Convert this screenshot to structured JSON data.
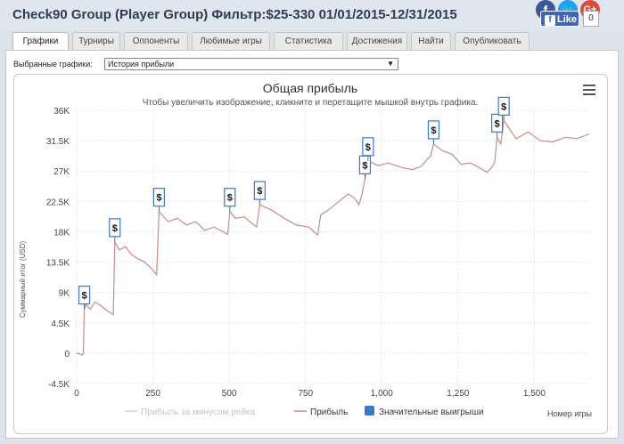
{
  "window": {
    "title": "Check90 Group (Player Group) Фильтр:$25-330 01/01/2015-12/31/2015"
  },
  "social": {
    "facebook_icon": "facebook-icon",
    "twitter_icon": "twitter-icon",
    "gplus_label": "G+",
    "fb_like_label": "Like",
    "gplus_count": "0"
  },
  "tabs": [
    {
      "label": "Графики",
      "active": true
    },
    {
      "label": "Турниры",
      "active": false
    },
    {
      "label": "Оппоненты",
      "active": false
    },
    {
      "label": "Любимые игры",
      "active": false
    },
    {
      "label": "Статистика",
      "active": false
    },
    {
      "label": "Достижения",
      "active": false
    },
    {
      "label": "Найти",
      "active": false
    },
    {
      "label": "Опубликовать",
      "active": false
    }
  ],
  "selector": {
    "label": "Выбранные графики:",
    "value": "История прибыли"
  },
  "menu_icon": "hamburger-menu-icon",
  "colors": {
    "profit_line": "#c98a8a",
    "no_rake_line": "#d0d0d0",
    "big_win_marker": "#3a78c8",
    "grid": "#d9d9d9"
  },
  "chart_data": {
    "type": "line",
    "title": "Общая прибыль",
    "subtitle": "Чтобы увеличить изображение, кликните и перетащите мышкой внутрь графика.",
    "ylabel": "Суммарный итог (USD)",
    "xlabel": "Номер игры",
    "ylim": [
      -4500,
      36000
    ],
    "xlim": [
      0,
      1680
    ],
    "yticks": [
      "-4.5K",
      "0",
      "4.5K",
      "9K",
      "13.5K",
      "18K",
      "22.5K",
      "27K",
      "31.5K",
      "36K"
    ],
    "ytick_values": [
      -4500,
      0,
      4500,
      9000,
      13500,
      18000,
      22500,
      27000,
      31500,
      36000
    ],
    "xticks": [
      "0",
      "250",
      "500",
      "750",
      "1,000",
      "1,250",
      "1,500"
    ],
    "xtick_values": [
      0,
      250,
      500,
      750,
      1000,
      1250,
      1500
    ],
    "grid": true,
    "legend_position": "bottom-center",
    "legend": [
      {
        "name": "Прибыль за минусом рейка",
        "visible": false
      },
      {
        "name": "Прибыль",
        "visible": true
      },
      {
        "name": "Значительные выигрыши",
        "visible": true
      }
    ],
    "series": [
      {
        "name": "Прибыль",
        "points": [
          [
            0,
            0
          ],
          [
            10,
            -100
          ],
          [
            18,
            -300
          ],
          [
            22,
            -100
          ],
          [
            25,
            6500
          ],
          [
            30,
            7200
          ],
          [
            45,
            6500
          ],
          [
            60,
            7600
          ],
          [
            80,
            7000
          ],
          [
            100,
            6300
          ],
          [
            120,
            5700
          ],
          [
            125,
            16500
          ],
          [
            140,
            15300
          ],
          [
            160,
            15800
          ],
          [
            180,
            14600
          ],
          [
            200,
            14000
          ],
          [
            220,
            13600
          ],
          [
            240,
            12800
          ],
          [
            255,
            12000
          ],
          [
            262,
            11600
          ],
          [
            270,
            21000
          ],
          [
            300,
            19500
          ],
          [
            330,
            20000
          ],
          [
            360,
            19000
          ],
          [
            390,
            19500
          ],
          [
            420,
            18200
          ],
          [
            450,
            18700
          ],
          [
            480,
            18000
          ],
          [
            495,
            17600
          ],
          [
            502,
            21000
          ],
          [
            520,
            20000
          ],
          [
            550,
            20200
          ],
          [
            575,
            19200
          ],
          [
            590,
            18700
          ],
          [
            600,
            22000
          ],
          [
            640,
            21200
          ],
          [
            680,
            20000
          ],
          [
            720,
            19000
          ],
          [
            760,
            18700
          ],
          [
            790,
            17500
          ],
          [
            800,
            20500
          ],
          [
            830,
            21400
          ],
          [
            860,
            22500
          ],
          [
            890,
            23600
          ],
          [
            910,
            23000
          ],
          [
            925,
            22000
          ],
          [
            935,
            23500
          ],
          [
            945,
            25800
          ],
          [
            955,
            28500
          ],
          [
            990,
            27800
          ],
          [
            1020,
            28200
          ],
          [
            1060,
            27600
          ],
          [
            1100,
            27200
          ],
          [
            1130,
            27700
          ],
          [
            1150,
            28800
          ],
          [
            1160,
            29200
          ],
          [
            1170,
            31000
          ],
          [
            1200,
            30000
          ],
          [
            1230,
            29500
          ],
          [
            1260,
            28000
          ],
          [
            1290,
            28200
          ],
          [
            1320,
            27500
          ],
          [
            1345,
            26800
          ],
          [
            1360,
            27500
          ],
          [
            1370,
            28300
          ],
          [
            1378,
            32000
          ],
          [
            1390,
            31000
          ],
          [
            1400,
            34500
          ],
          [
            1440,
            31800
          ],
          [
            1480,
            32800
          ],
          [
            1520,
            31500
          ],
          [
            1560,
            31300
          ],
          [
            1600,
            32000
          ],
          [
            1640,
            31800
          ],
          [
            1680,
            32500
          ]
        ]
      }
    ],
    "big_wins": [
      {
        "x": 25,
        "y": 6500,
        "label": "$"
      },
      {
        "x": 125,
        "y": 16500,
        "label": "$"
      },
      {
        "x": 270,
        "y": 21000,
        "label": "$"
      },
      {
        "x": 502,
        "y": 21000,
        "label": "$"
      },
      {
        "x": 600,
        "y": 22000,
        "label": "$"
      },
      {
        "x": 945,
        "y": 25800,
        "label": "$"
      },
      {
        "x": 955,
        "y": 28500,
        "label": "$"
      },
      {
        "x": 1170,
        "y": 31000,
        "label": "$"
      },
      {
        "x": 1378,
        "y": 32000,
        "label": "$"
      },
      {
        "x": 1400,
        "y": 34500,
        "label": "$"
      }
    ]
  }
}
